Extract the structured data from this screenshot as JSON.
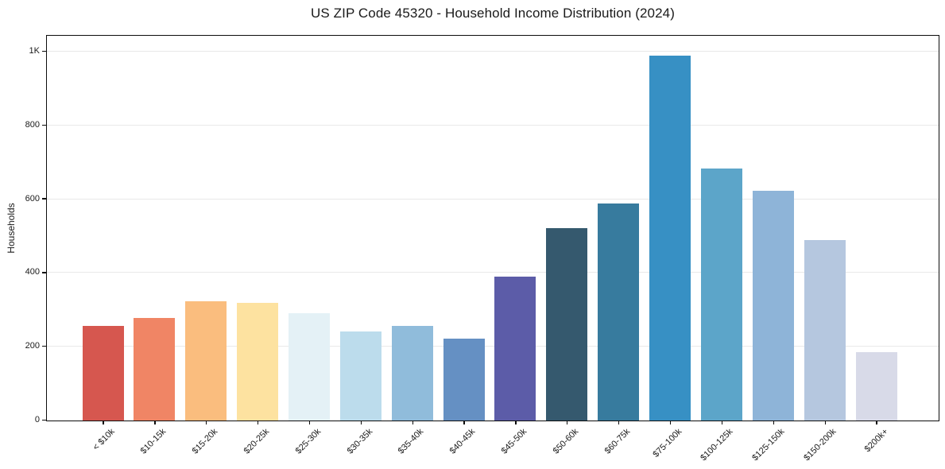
{
  "chart_data": {
    "type": "bar",
    "title": "US ZIP Code 45320 - Household Income Distribution (2024)",
    "xlabel": "",
    "ylabel": "Households",
    "categories": [
      "< $10k",
      "$10-15k",
      "$15-20k",
      "$20-25k",
      "$25-30k",
      "$30-35k",
      "$35-40k",
      "$40-45k",
      "$45-50k",
      "$50-60k",
      "$60-75k",
      "$75-100k",
      "$100-125k",
      "$125-150k",
      "$150-200k",
      "$200k+"
    ],
    "values": [
      257,
      278,
      323,
      319,
      291,
      242,
      256,
      221,
      391,
      521,
      589,
      990,
      683,
      622,
      490,
      186
    ],
    "bar_colors": [
      "#d6574f",
      "#f08565",
      "#fabd7e",
      "#fde2a0",
      "#e4f1f6",
      "#bcdcec",
      "#90bcdb",
      "#6590c3",
      "#5c5ca8",
      "#35596e",
      "#377b9e",
      "#3790c4",
      "#5ca5c9",
      "#8eb4d8",
      "#b5c7df",
      "#d8dae8"
    ],
    "yticks": {
      "values": [
        0,
        200,
        400,
        600,
        800,
        1000
      ],
      "labels": [
        "0",
        "200",
        "400",
        "600",
        "800",
        "1K"
      ]
    },
    "ylim": [
      0,
      1043
    ],
    "grid": true,
    "legend": false,
    "background_color": "#ffffff",
    "text_color": "#1a1a1a",
    "grid_color": "#e9e9e9",
    "spine_color": "#0d0d0d"
  }
}
